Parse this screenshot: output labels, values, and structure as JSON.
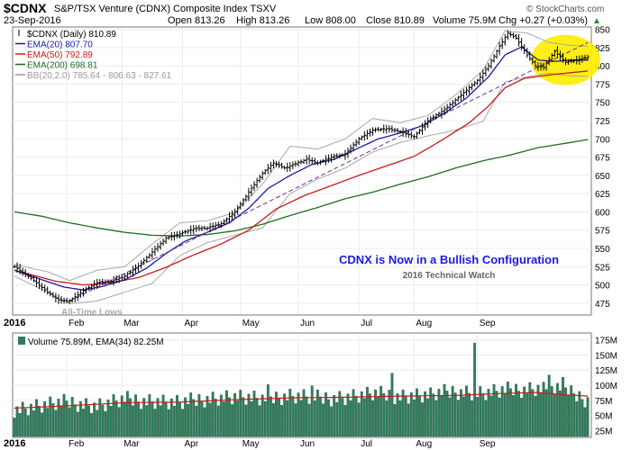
{
  "header": {
    "symbol": "$CDNX",
    "name": "S&P/TSX Venture (CDNX) Composite Index  TSXV",
    "brand": "© StockCharts.com",
    "date": "23-Sep-2016",
    "open": "Open 813.26",
    "high": "High 813.26",
    "low": "Low 808.00",
    "close": "Close 810.89",
    "volume": "Volume 75.9M",
    "chg": "Chg +0.27 (+0.03%)",
    "chg_arrow": "▲"
  },
  "legend": [
    {
      "text": "$CDNX (Daily) 810.89",
      "color": "#000000",
      "glyph": "bar"
    },
    {
      "text": "EMA(20) 807.70",
      "color": "#1a1aa6",
      "glyph": "line"
    },
    {
      "text": "EMA(50) 792.89",
      "color": "#cc1a1a",
      "glyph": "line"
    },
    {
      "text": "EMA(200) 698.81",
      "color": "#1f6e1f",
      "glyph": "line"
    },
    {
      "text": "BB(20,2.0) 785.64 - 806.63 - 827.61",
      "color": "#9a9a9a",
      "glyph": "line"
    }
  ],
  "annotations": {
    "title": "CDNX is Now in a Bullish Configuration",
    "subtitle": "2016 Technical Watch",
    "lows": "All-Time Lows"
  },
  "volume_legend": "Volume 75.89M, EMA(34) 82.25M",
  "colors": {
    "ema20": "#1a1aa6",
    "ema50": "#cc1a1a",
    "ema200": "#1f6e1f",
    "bb": "#a8a8a8",
    "trend": "#7a2a8a",
    "volume": "#2e7d5b",
    "volume_ema": "#cc1a1a",
    "highlight": "#ffee00",
    "annotation": "#1a1ae6"
  },
  "chart_data": [
    {
      "type": "line",
      "title": "$CDNX (Daily) 810.89",
      "x_labels": [
        "2016",
        "Feb",
        "Mar",
        "Apr",
        "May",
        "Jun",
        "Jul",
        "Aug",
        "Sep"
      ],
      "ylim": [
        460,
        852
      ],
      "y_ticks": [
        475,
        500,
        525,
        550,
        575,
        600,
        625,
        650,
        675,
        700,
        725,
        750,
        775,
        800,
        825,
        850
      ],
      "grid": true,
      "legend_position": "top-left",
      "anchors": {
        "close": [
          [
            0,
            525
          ],
          [
            6,
            509
          ],
          [
            12,
            490
          ],
          [
            16,
            479
          ],
          [
            20,
            478
          ],
          [
            25,
            492
          ],
          [
            30,
            503
          ],
          [
            35,
            505
          ],
          [
            40,
            512
          ],
          [
            45,
            526
          ],
          [
            50,
            545
          ],
          [
            55,
            564
          ],
          [
            60,
            570
          ],
          [
            65,
            577
          ],
          [
            70,
            578
          ],
          [
            75,
            584
          ],
          [
            80,
            600
          ],
          [
            85,
            627
          ],
          [
            90,
            653
          ],
          [
            94,
            667
          ],
          [
            98,
            660
          ],
          [
            102,
            666
          ],
          [
            106,
            672
          ],
          [
            110,
            667
          ],
          [
            115,
            675
          ],
          [
            120,
            679
          ],
          [
            125,
            700
          ],
          [
            130,
            712
          ],
          [
            135,
            714
          ],
          [
            140,
            710
          ],
          [
            145,
            703
          ],
          [
            150,
            725
          ],
          [
            156,
            740
          ],
          [
            162,
            760
          ],
          [
            168,
            780
          ],
          [
            172,
            800
          ],
          [
            176,
            827
          ],
          [
            179,
            845
          ],
          [
            182,
            838
          ],
          [
            186,
            815
          ],
          [
            189,
            800
          ],
          [
            192,
            798
          ],
          [
            196,
            820
          ],
          [
            200,
            805
          ],
          [
            204,
            808
          ],
          [
            208,
            812
          ]
        ],
        "ema20": [
          [
            0,
            520
          ],
          [
            10,
            507
          ],
          [
            18,
            497
          ],
          [
            25,
            493
          ],
          [
            32,
            498
          ],
          [
            40,
            507
          ],
          [
            48,
            523
          ],
          [
            55,
            543
          ],
          [
            62,
            560
          ],
          [
            70,
            572
          ],
          [
            78,
            585
          ],
          [
            85,
            605
          ],
          [
            92,
            632
          ],
          [
            100,
            650
          ],
          [
            108,
            665
          ],
          [
            116,
            672
          ],
          [
            124,
            686
          ],
          [
            132,
            700
          ],
          [
            140,
            708
          ],
          [
            148,
            718
          ],
          [
            156,
            735
          ],
          [
            164,
            756
          ],
          [
            172,
            785
          ],
          [
            178,
            815
          ],
          [
            184,
            826
          ],
          [
            190,
            808
          ],
          [
            196,
            806
          ],
          [
            202,
            808
          ],
          [
            208,
            808
          ]
        ],
        "ema50": [
          [
            0,
            520
          ],
          [
            15,
            505
          ],
          [
            25,
            500
          ],
          [
            35,
            503
          ],
          [
            45,
            510
          ],
          [
            55,
            524
          ],
          [
            65,
            541
          ],
          [
            75,
            556
          ],
          [
            85,
            575
          ],
          [
            95,
            604
          ],
          [
            105,
            622
          ],
          [
            115,
            636
          ],
          [
            125,
            650
          ],
          [
            135,
            663
          ],
          [
            145,
            676
          ],
          [
            155,
            698
          ],
          [
            165,
            722
          ],
          [
            172,
            745
          ],
          [
            178,
            770
          ],
          [
            185,
            783
          ],
          [
            195,
            788
          ],
          [
            208,
            793
          ]
        ],
        "ema200": [
          [
            0,
            600
          ],
          [
            10,
            594
          ],
          [
            20,
            585
          ],
          [
            30,
            578
          ],
          [
            40,
            572
          ],
          [
            50,
            568
          ],
          [
            60,
            567
          ],
          [
            70,
            569
          ],
          [
            80,
            574
          ],
          [
            90,
            583
          ],
          [
            100,
            595
          ],
          [
            110,
            606
          ],
          [
            120,
            618
          ],
          [
            130,
            627
          ],
          [
            140,
            638
          ],
          [
            150,
            648
          ],
          [
            160,
            660
          ],
          [
            170,
            670
          ],
          [
            180,
            678
          ],
          [
            190,
            688
          ],
          [
            200,
            694
          ],
          [
            208,
            699
          ]
        ],
        "bb_upper": [
          [
            0,
            528
          ],
          [
            12,
            518
          ],
          [
            20,
            506
          ],
          [
            30,
            520
          ],
          [
            40,
            525
          ],
          [
            50,
            556
          ],
          [
            60,
            585
          ],
          [
            70,
            588
          ],
          [
            80,
            599
          ],
          [
            90,
            638
          ],
          [
            100,
            690
          ],
          [
            110,
            686
          ],
          [
            120,
            700
          ],
          [
            130,
            728
          ],
          [
            140,
            722
          ],
          [
            150,
            732
          ],
          [
            160,
            760
          ],
          [
            170,
            794
          ],
          [
            178,
            848
          ],
          [
            186,
            845
          ],
          [
            194,
            832
          ],
          [
            202,
            828
          ],
          [
            208,
            827
          ]
        ],
        "bb_lower": [
          [
            0,
            512
          ],
          [
            12,
            490
          ],
          [
            20,
            474
          ],
          [
            30,
            478
          ],
          [
            40,
            490
          ],
          [
            50,
            502
          ],
          [
            60,
            540
          ],
          [
            70,
            558
          ],
          [
            80,
            568
          ],
          [
            90,
            578
          ],
          [
            100,
            625
          ],
          [
            110,
            645
          ],
          [
            120,
            660
          ],
          [
            130,
            682
          ],
          [
            140,
            695
          ],
          [
            150,
            704
          ],
          [
            160,
            712
          ],
          [
            170,
            724
          ],
          [
            178,
            778
          ],
          [
            186,
            785
          ],
          [
            194,
            790
          ],
          [
            202,
            786
          ],
          [
            208,
            786
          ]
        ],
        "trendline": [
          [
            20,
            478
          ],
          [
            208,
            832
          ]
        ]
      },
      "highlight": {
        "x_start": 192,
        "x_end": 208,
        "y_center": 808
      }
    },
    {
      "type": "bar",
      "title": "Volume 75.89M, EMA(34) 82.25M",
      "x_labels": [
        "2016",
        "Feb",
        "Mar",
        "Apr",
        "May",
        "Jun",
        "Jul",
        "Aug",
        "Sep"
      ],
      "ylim": [
        15,
        185
      ],
      "y_ticks": [
        "25M",
        "50M",
        "75M",
        "100M",
        "125M",
        "150M",
        "175M"
      ],
      "y_tick_values": [
        25,
        50,
        75,
        100,
        125,
        150,
        175
      ],
      "grid": true,
      "anchors": {
        "volume": [
          [
            0,
            60
          ],
          [
            10,
            66
          ],
          [
            20,
            72
          ],
          [
            30,
            65
          ],
          [
            40,
            76
          ],
          [
            50,
            74
          ],
          [
            60,
            70
          ],
          [
            70,
            78
          ],
          [
            80,
            80
          ],
          [
            90,
            75
          ],
          [
            100,
            82
          ],
          [
            110,
            78
          ],
          [
            120,
            80
          ],
          [
            130,
            85
          ],
          [
            140,
            82
          ],
          [
            150,
            83
          ],
          [
            160,
            90
          ],
          [
            170,
            86
          ],
          [
            180,
            92
          ],
          [
            190,
            95
          ],
          [
            200,
            88
          ],
          [
            208,
            76
          ]
        ],
        "ema34": [
          [
            0,
            62
          ],
          [
            20,
            66
          ],
          [
            40,
            71
          ],
          [
            60,
            72
          ],
          [
            80,
            76
          ],
          [
            100,
            79
          ],
          [
            120,
            80
          ],
          [
            140,
            82
          ],
          [
            160,
            83
          ],
          [
            175,
            86
          ],
          [
            190,
            88
          ],
          [
            200,
            84
          ],
          [
            208,
            82
          ]
        ]
      },
      "spikes": [
        [
          92,
          101
        ],
        [
          108,
          99
        ],
        [
          137,
          120
        ],
        [
          151,
          96
        ],
        [
          167,
          170
        ],
        [
          194,
          117
        ],
        [
          199,
          113
        ]
      ]
    }
  ]
}
